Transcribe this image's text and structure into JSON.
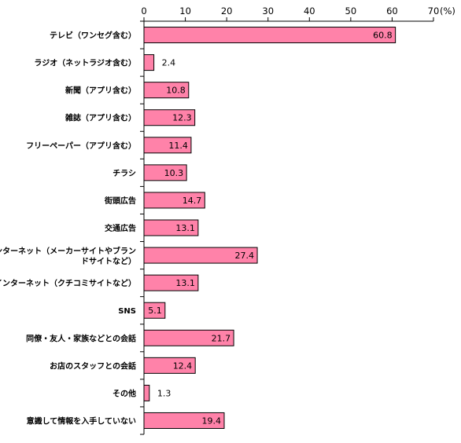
{
  "chart_data": {
    "type": "bar",
    "orientation": "horizontal",
    "categories": [
      "テレビ（ワンセグ含む）",
      "ラジオ（ネットラジオ含む）",
      "新聞（アプリ含む）",
      "雑誌（アプリ含む）",
      "フリーペーパー（アプリ含む）",
      "チラシ",
      "街頭広告",
      "交通広告",
      [
        "インターネット（メーカーサイトやブラン",
        "ドサイトなど）"
      ],
      "インターネット（クチコミサイトなど）",
      "SNS",
      "同僚・友人・家族などとの会話",
      "お店のスタッフとの会話",
      "その他",
      "意識して情報を入手していない"
    ],
    "values": [
      60.8,
      2.4,
      10.8,
      12.3,
      11.4,
      10.3,
      14.7,
      13.1,
      27.4,
      13.1,
      5.1,
      21.7,
      12.4,
      1.3,
      19.4
    ],
    "value_labels": [
      "60.8",
      "2.4",
      "10.8",
      "12.3",
      "11.4",
      "10.3",
      "14.7",
      "13.1",
      "27.4",
      "13.1",
      "5.1",
      "21.7",
      "12.4",
      "1.3",
      "19.4"
    ],
    "xlim": [
      0,
      70
    ],
    "xticks": [
      "0",
      "10",
      "20",
      "30",
      "40",
      "50",
      "60",
      "70"
    ],
    "x_unit": "(%)",
    "bar_color": "#ff82a9",
    "bar_edge_color": "#000000",
    "grid": false
  }
}
